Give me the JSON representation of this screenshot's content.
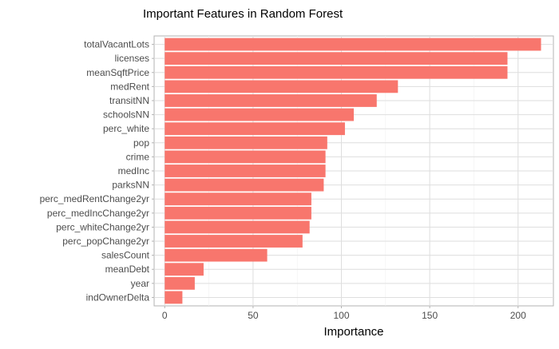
{
  "chart_data": {
    "type": "bar",
    "orientation": "horizontal",
    "title": "Important Features in Random Forest",
    "xlabel": "Importance",
    "ylabel": "",
    "xlim": [
      -6,
      220
    ],
    "xticks": [
      0,
      50,
      100,
      150,
      200
    ],
    "grid": true,
    "legend": "none",
    "bar_color": "#F8766D",
    "categories": [
      "totalVacantLots",
      "licenses",
      "meanSqftPrice",
      "medRent",
      "transitNN",
      "schoolsNN",
      "perc_white",
      "pop",
      "crime",
      "medInc",
      "parksNN",
      "perc_medRentChange2yr",
      "perc_medIncChange2yr",
      "perc_whiteChange2yr",
      "perc_popChange2yr",
      "salesCount",
      "meanDebt",
      "year",
      "indOwnerDelta"
    ],
    "values": [
      213,
      194,
      194,
      132,
      120,
      107,
      102,
      92,
      91,
      91,
      90,
      83,
      83,
      82,
      78,
      58,
      22,
      17,
      10
    ]
  }
}
